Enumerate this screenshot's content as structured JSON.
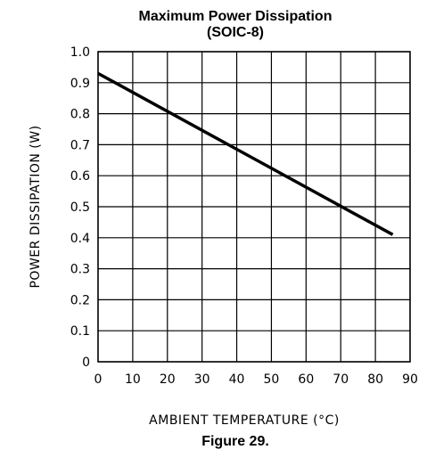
{
  "figure_caption": "Figure 29.",
  "chart_data": {
    "type": "line",
    "title": "Maximum Power Dissipation",
    "subtitle": "(SOIC-8)",
    "xlabel": "AMBIENT TEMPERATURE (°C)",
    "ylabel": "POWER DISSIPATION (W)",
    "xlim": [
      0,
      90
    ],
    "ylim": [
      0,
      1.0
    ],
    "x_ticks": [
      0,
      10,
      20,
      30,
      40,
      50,
      60,
      70,
      80,
      90
    ],
    "x_tick_labels": [
      "0",
      "10",
      "20",
      "30",
      "40",
      "50",
      "60",
      "70",
      "80",
      "90"
    ],
    "y_ticks": [
      0,
      0.1,
      0.2,
      0.3,
      0.4,
      0.5,
      0.6,
      0.7,
      0.8,
      0.9,
      1.0
    ],
    "y_tick_labels": [
      "0",
      "0.1",
      "0.2",
      "0.3",
      "0.4",
      "0.5",
      "0.6",
      "0.7",
      "0.8",
      "0.9",
      "1.0"
    ],
    "grid": true,
    "series": [
      {
        "x": [
          0,
          85
        ],
        "y": [
          0.93,
          0.41
        ],
        "color": "#000000"
      }
    ]
  }
}
